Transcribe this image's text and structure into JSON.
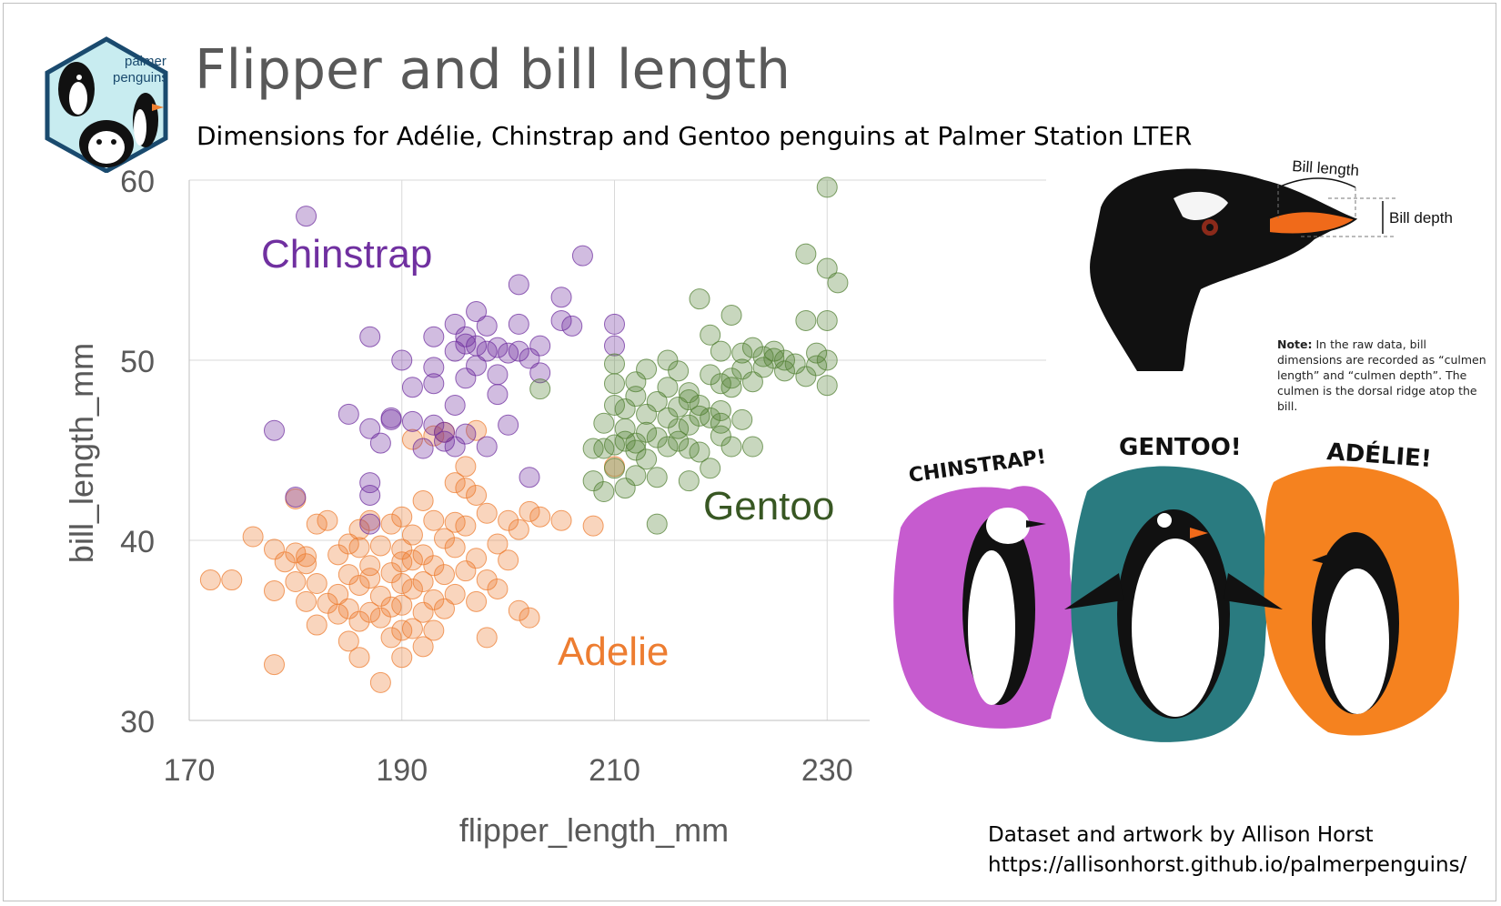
{
  "title": "Flipper and bill length",
  "subtitle": "Dimensions for Adélie, Chinstrap and Gentoo penguins at Palmer Station LTER",
  "logo": {
    "line1": "palmer",
    "line2": "penguins"
  },
  "bill_diagram": {
    "bill_length_label": "Bill length",
    "bill_depth_label": "Bill depth",
    "note_heading": "Note:",
    "note_text": "In the raw data, bill dimensions are recorded as “culmen length” and “culmen depth”. The culmen is the dorsal ridge atop the bill."
  },
  "artwork": {
    "labels": [
      "CHINSTRAP!",
      "GENTOO!",
      "ADÉLIE!"
    ]
  },
  "credit": {
    "line1": "Dataset and artwork by Allison Horst",
    "line2": "https://allisonhorst.github.io/palmerpenguins/"
  },
  "colors": {
    "Adelie": "#ed7d31",
    "Chinstrap": "#7030a0",
    "Gentoo": "#548235",
    "gentoo_label": "#385723",
    "axis_text": "#595959",
    "grid": "#d9d9d9"
  },
  "chart_data": {
    "type": "scatter",
    "xlabel": "flipper_length_mm",
    "ylabel": "bill_length_mm",
    "xlim": [
      170,
      234
    ],
    "ylim": [
      30,
      60
    ],
    "xticks": [
      170,
      190,
      210,
      230
    ],
    "yticks": [
      30,
      40,
      50,
      60
    ],
    "grid": true,
    "series": [
      {
        "name": "Adelie",
        "label": "Adelie",
        "color": "#ed7d31",
        "points": [
          [
            172,
            37.8
          ],
          [
            174,
            37.8
          ],
          [
            176,
            40.2
          ],
          [
            178,
            39.5
          ],
          [
            178,
            37.2
          ],
          [
            178,
            33.1
          ],
          [
            179,
            38.8
          ],
          [
            180,
            42.3
          ],
          [
            180,
            39.3
          ],
          [
            180,
            37.7
          ],
          [
            181,
            39.1
          ],
          [
            181,
            36.6
          ],
          [
            181,
            38.7
          ],
          [
            182,
            40.9
          ],
          [
            182,
            37.6
          ],
          [
            182,
            35.3
          ],
          [
            183,
            41.1
          ],
          [
            183,
            36.5
          ],
          [
            184,
            39.2
          ],
          [
            184,
            37.0
          ],
          [
            184,
            35.9
          ],
          [
            185,
            39.8
          ],
          [
            185,
            38.1
          ],
          [
            185,
            36.2
          ],
          [
            185,
            34.4
          ],
          [
            186,
            39.6
          ],
          [
            186,
            37.5
          ],
          [
            186,
            40.6
          ],
          [
            186,
            35.5
          ],
          [
            186,
            33.5
          ],
          [
            187,
            41.1
          ],
          [
            187,
            38.6
          ],
          [
            187,
            36.0
          ],
          [
            187,
            37.9
          ],
          [
            188,
            39.7
          ],
          [
            188,
            36.9
          ],
          [
            188,
            32.1
          ],
          [
            188,
            35.7
          ],
          [
            189,
            40.9
          ],
          [
            189,
            38.2
          ],
          [
            189,
            36.3
          ],
          [
            189,
            34.6
          ],
          [
            190,
            41.3
          ],
          [
            190,
            39.5
          ],
          [
            190,
            38.8
          ],
          [
            190,
            37.6
          ],
          [
            190,
            36.4
          ],
          [
            190,
            35.0
          ],
          [
            190,
            33.5
          ],
          [
            191,
            40.3
          ],
          [
            191,
            38.9
          ],
          [
            191,
            37.3
          ],
          [
            191,
            35.1
          ],
          [
            192,
            42.2
          ],
          [
            192,
            39.2
          ],
          [
            192,
            37.7
          ],
          [
            192,
            36.0
          ],
          [
            192,
            34.1
          ],
          [
            193,
            45.8
          ],
          [
            193,
            41.1
          ],
          [
            193,
            38.6
          ],
          [
            193,
            36.7
          ],
          [
            193,
            35.0
          ],
          [
            194,
            40.1
          ],
          [
            194,
            38.1
          ],
          [
            194,
            36.2
          ],
          [
            195,
            43.2
          ],
          [
            195,
            41.0
          ],
          [
            195,
            39.6
          ],
          [
            195,
            37.0
          ],
          [
            196,
            42.9
          ],
          [
            196,
            44.1
          ],
          [
            196,
            40.8
          ],
          [
            196,
            38.3
          ],
          [
            197,
            42.5
          ],
          [
            197,
            39.0
          ],
          [
            197,
            36.6
          ],
          [
            198,
            41.5
          ],
          [
            198,
            37.8
          ],
          [
            198,
            34.6
          ],
          [
            199,
            39.8
          ],
          [
            199,
            37.3
          ],
          [
            200,
            41.1
          ],
          [
            200,
            38.9
          ],
          [
            201,
            40.6
          ],
          [
            201,
            36.1
          ],
          [
            202,
            41.6
          ],
          [
            203,
            41.3
          ],
          [
            205,
            41.1
          ],
          [
            208,
            40.8
          ],
          [
            210,
            44.1
          ],
          [
            202,
            35.7
          ],
          [
            194,
            46.0
          ],
          [
            197,
            46.1
          ],
          [
            191,
            45.6
          ]
        ]
      },
      {
        "name": "Chinstrap",
        "label": "Chinstrap",
        "color": "#7030a0",
        "points": [
          [
            181,
            58.0
          ],
          [
            178,
            46.1
          ],
          [
            180,
            42.4
          ],
          [
            187,
            51.3
          ],
          [
            185,
            47.0
          ],
          [
            187,
            46.2
          ],
          [
            188,
            45.4
          ],
          [
            189,
            46.7
          ],
          [
            190,
            50.0
          ],
          [
            187,
            43.2
          ],
          [
            187,
            42.5
          ],
          [
            187,
            40.9
          ],
          [
            191,
            48.5
          ],
          [
            191,
            46.6
          ],
          [
            192,
            45.1
          ],
          [
            193,
            46.4
          ],
          [
            193,
            51.3
          ],
          [
            193,
            49.6
          ],
          [
            194,
            45.5
          ],
          [
            194,
            46.0
          ],
          [
            195,
            52.0
          ],
          [
            195,
            50.5
          ],
          [
            195,
            47.5
          ],
          [
            195,
            45.2
          ],
          [
            196,
            50.9
          ],
          [
            196,
            51.3
          ],
          [
            196,
            49.0
          ],
          [
            196,
            45.9
          ],
          [
            197,
            50.8
          ],
          [
            197,
            52.7
          ],
          [
            197,
            49.7
          ],
          [
            198,
            50.5
          ],
          [
            198,
            51.9
          ],
          [
            198,
            45.2
          ],
          [
            199,
            48.1
          ],
          [
            199,
            49.2
          ],
          [
            200,
            50.4
          ],
          [
            200,
            46.4
          ],
          [
            201,
            52.0
          ],
          [
            201,
            50.5
          ],
          [
            201,
            54.2
          ],
          [
            202,
            50.1
          ],
          [
            202,
            43.5
          ],
          [
            203,
            50.8
          ],
          [
            203,
            49.3
          ],
          [
            205,
            53.5
          ],
          [
            205,
            52.2
          ],
          [
            206,
            51.9
          ],
          [
            207,
            55.8
          ],
          [
            210,
            52.0
          ],
          [
            210,
            50.8
          ],
          [
            193,
            48.7
          ],
          [
            189,
            46.8
          ],
          [
            199,
            50.7
          ]
        ]
      },
      {
        "name": "Gentoo",
        "label": "Gentoo",
        "color": "#548235",
        "points": [
          [
            203,
            48.4
          ],
          [
            208,
            45.1
          ],
          [
            208,
            43.3
          ],
          [
            209,
            42.7
          ],
          [
            209,
            45.1
          ],
          [
            209,
            46.5
          ],
          [
            210,
            44.0
          ],
          [
            210,
            47.5
          ],
          [
            210,
            48.7
          ],
          [
            210,
            45.3
          ],
          [
            211,
            46.2
          ],
          [
            211,
            47.3
          ],
          [
            211,
            45.5
          ],
          [
            212,
            43.6
          ],
          [
            212,
            48.8
          ],
          [
            212,
            45.4
          ],
          [
            212,
            45.0
          ],
          [
            213,
            46.0
          ],
          [
            213,
            49.5
          ],
          [
            213,
            44.5
          ],
          [
            214,
            47.7
          ],
          [
            214,
            45.7
          ],
          [
            214,
            40.9
          ],
          [
            214,
            43.5
          ],
          [
            215,
            46.8
          ],
          [
            215,
            45.2
          ],
          [
            215,
            48.5
          ],
          [
            215,
            50.0
          ],
          [
            216,
            46.2
          ],
          [
            216,
            47.4
          ],
          [
            216,
            45.5
          ],
          [
            216,
            49.4
          ],
          [
            217,
            46.4
          ],
          [
            217,
            45.1
          ],
          [
            217,
            48.2
          ],
          [
            217,
            43.3
          ],
          [
            218,
            47.5
          ],
          [
            218,
            53.4
          ],
          [
            218,
            46.9
          ],
          [
            218,
            44.9
          ],
          [
            219,
            46.8
          ],
          [
            219,
            49.2
          ],
          [
            219,
            51.4
          ],
          [
            219,
            44.0
          ],
          [
            220,
            47.2
          ],
          [
            220,
            50.5
          ],
          [
            220,
            48.7
          ],
          [
            220,
            46.5
          ],
          [
            221,
            45.2
          ],
          [
            221,
            49.0
          ],
          [
            221,
            52.5
          ],
          [
            221,
            48.5
          ],
          [
            222,
            50.4
          ],
          [
            222,
            46.7
          ],
          [
            222,
            49.5
          ],
          [
            223,
            50.7
          ],
          [
            223,
            48.8
          ],
          [
            224,
            50.2
          ],
          [
            224,
            49.6
          ],
          [
            225,
            50.5
          ],
          [
            225,
            50.1
          ],
          [
            226,
            49.4
          ],
          [
            226,
            50.0
          ],
          [
            227,
            49.8
          ],
          [
            228,
            52.2
          ],
          [
            228,
            49.1
          ],
          [
            229,
            50.4
          ],
          [
            229,
            49.7
          ],
          [
            230,
            50.0
          ],
          [
            230,
            52.2
          ],
          [
            230,
            55.1
          ],
          [
            230,
            48.6
          ],
          [
            231,
            54.3
          ],
          [
            230,
            59.6
          ],
          [
            228,
            55.9
          ],
          [
            220,
            45.8
          ],
          [
            217,
            47.8
          ],
          [
            213,
            47.0
          ],
          [
            211,
            42.9
          ],
          [
            223,
            45.2
          ],
          [
            210,
            49.8
          ],
          [
            212,
            48.0
          ]
        ]
      }
    ]
  }
}
